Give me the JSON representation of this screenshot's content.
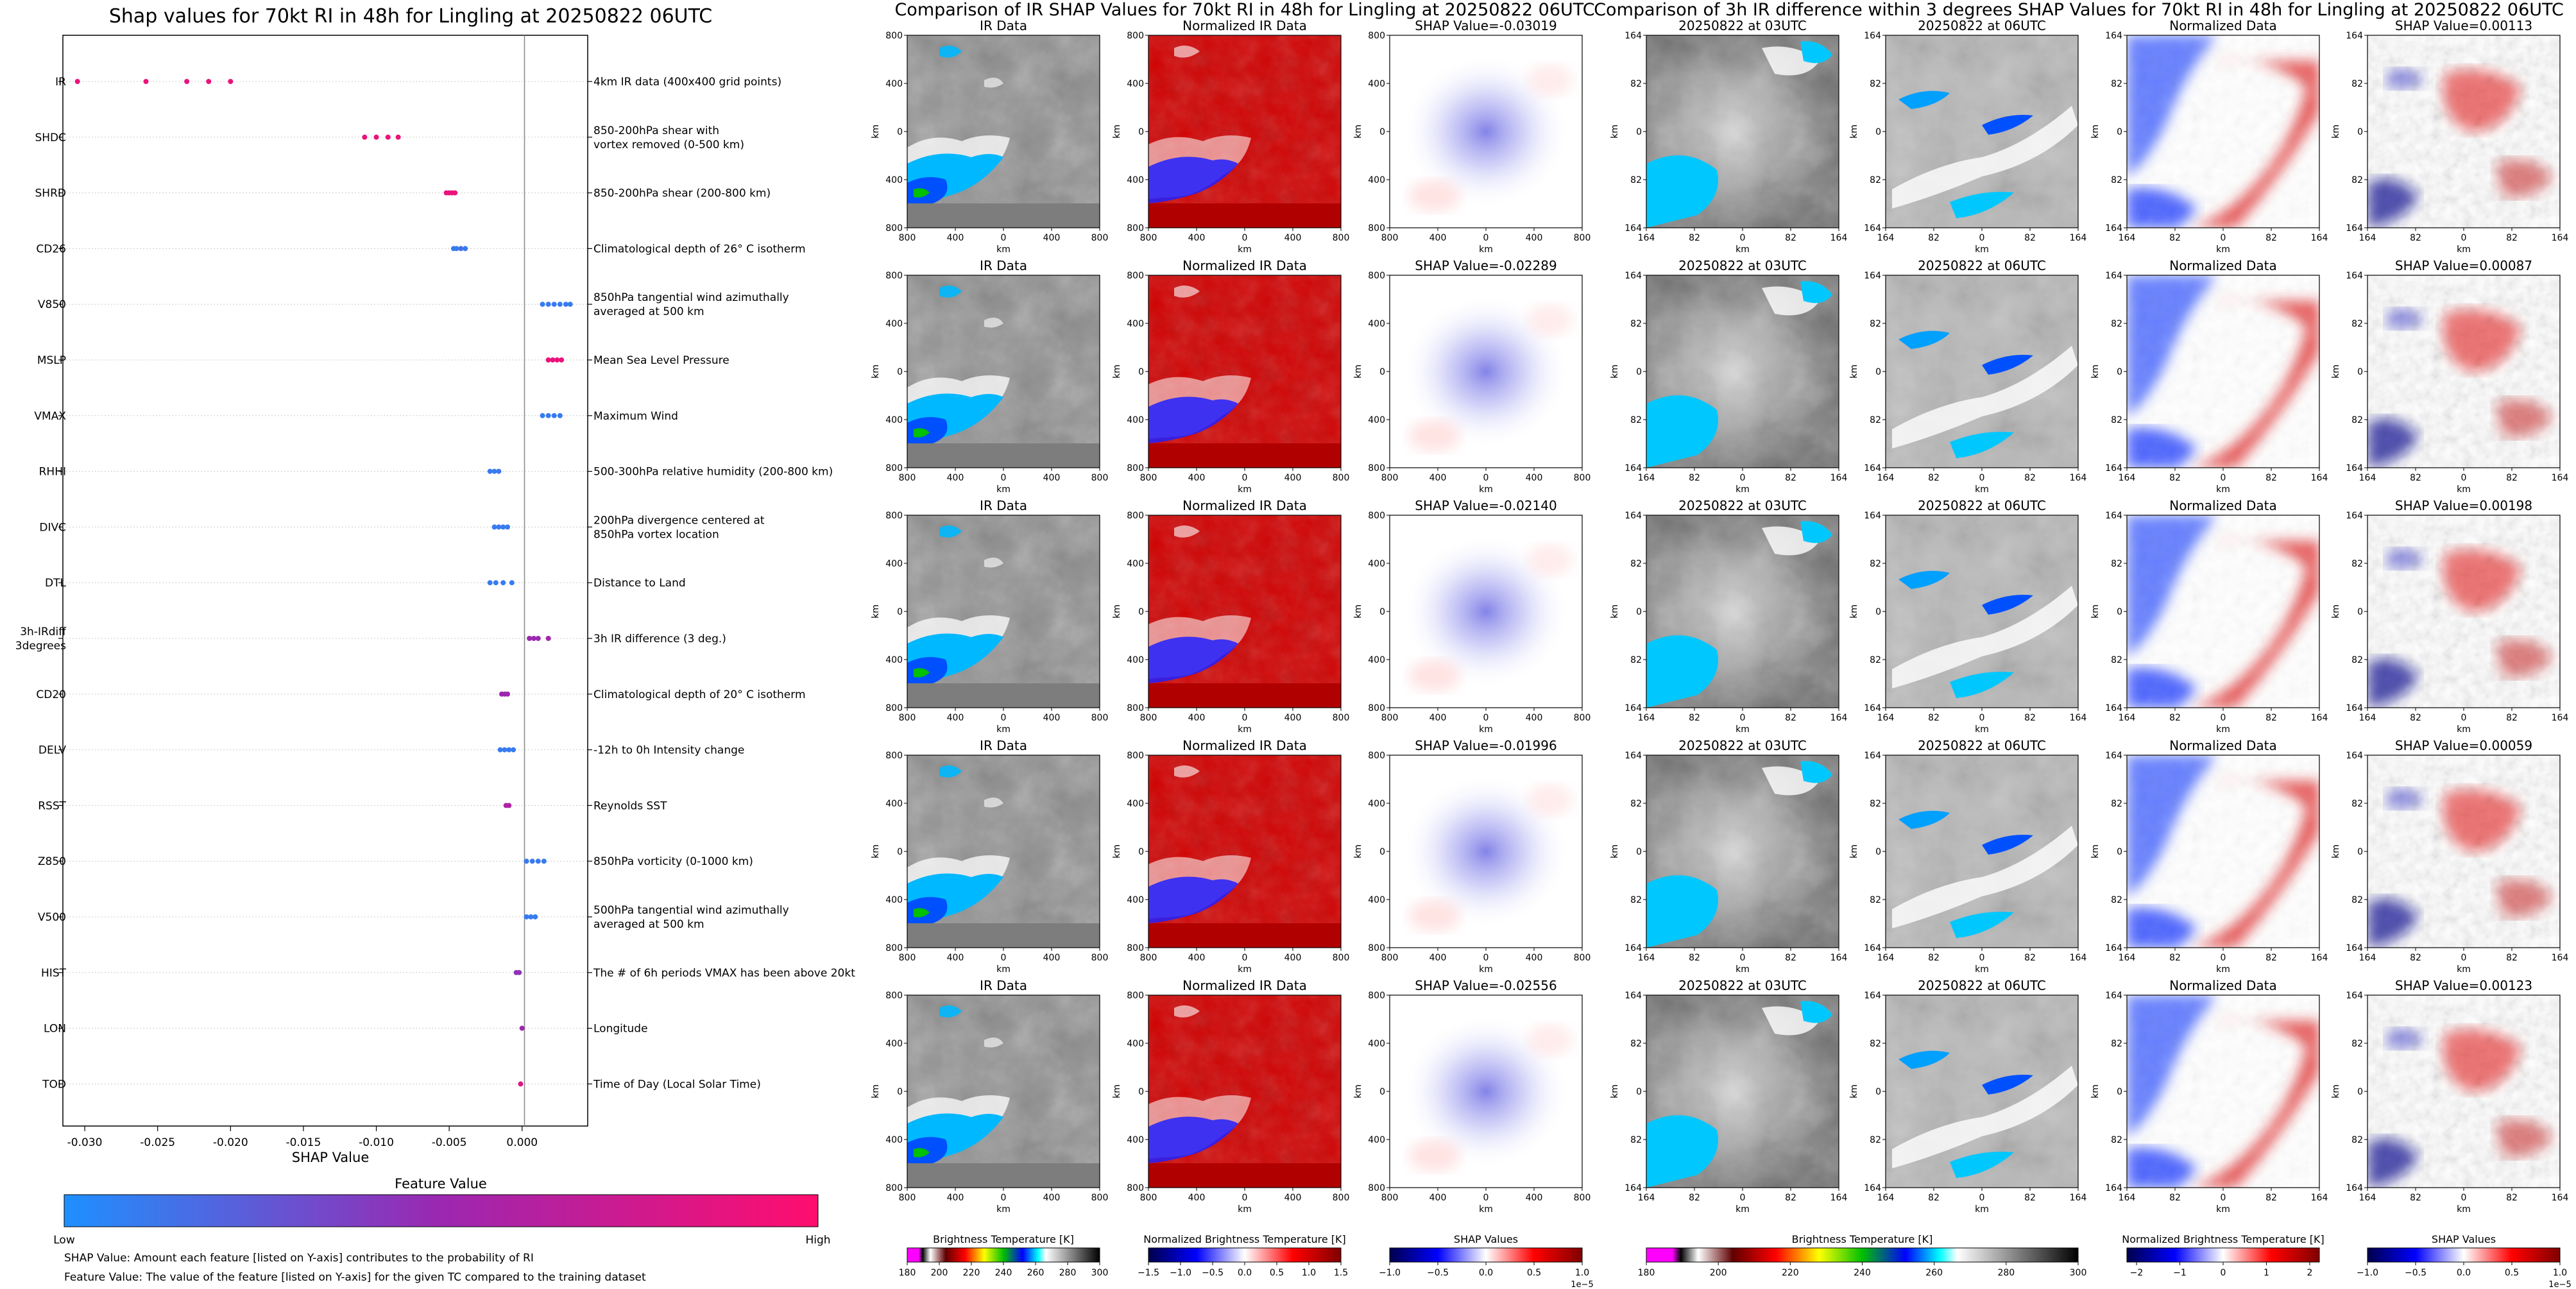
{
  "colors": {
    "feature_low": "#1e90ff",
    "feature_mid": "#9c27b0",
    "feature_high": "#ff0d6e",
    "shap_neg": "#0000c8",
    "shap_pos": "#c80000",
    "ir_gray": "#8a8a8a",
    "ir_cold": "#00a8ff"
  },
  "shap_panel": {
    "title": "Shap values for 70kt RI in 48h for Lingling at 20250822 06UTC",
    "xlabel": "SHAP Value",
    "colorbar_title": "Feature Value",
    "colorbar_low": "Low",
    "colorbar_high": "High",
    "footnote_1": "SHAP Value: Amount each feature [listed on Y-axis] contributes to the probability of RI",
    "footnote_2": "Feature Value: The value of the feature [listed on Y-axis] for the given TC compared to the training dataset"
  },
  "chart_data": [
    {
      "type": "scatter",
      "title": "Shap values for 70kt RI in 48h for Lingling at 20250822 06UTC",
      "xlabel": "SHAP Value",
      "xlim": [
        -0.0315,
        0.0045
      ],
      "xticks": [
        "-0.030",
        "-0.025",
        "-0.020",
        "-0.015",
        "-0.010",
        "-0.005",
        "0.000"
      ],
      "xtick_values": [
        -0.03,
        -0.025,
        -0.02,
        -0.015,
        -0.01,
        -0.005,
        0.0
      ],
      "features": [
        {
          "name": "IR",
          "desc": [
            "4km IR data (400x400 grid points)"
          ],
          "points": [
            [
              -0.0305,
              0.9
            ],
            [
              -0.0258,
              0.9
            ],
            [
              -0.023,
              0.9
            ],
            [
              -0.0215,
              0.9
            ],
            [
              -0.02,
              0.9
            ]
          ]
        },
        {
          "name": "SHDC",
          "desc": [
            "850-200hPa shear with",
            "vortex removed (0-500 km)"
          ],
          "points": [
            [
              -0.0108,
              0.9
            ],
            [
              -0.01,
              0.9
            ],
            [
              -0.0092,
              0.9
            ],
            [
              -0.0085,
              0.9
            ]
          ]
        },
        {
          "name": "SHRD",
          "desc": [
            "850-200hPa shear (200-800 km)"
          ],
          "points": [
            [
              -0.0052,
              0.9
            ],
            [
              -0.005,
              0.9
            ],
            [
              -0.0048,
              0.9
            ],
            [
              -0.0046,
              0.9
            ]
          ]
        },
        {
          "name": "CD26",
          "desc": [
            "Climatological depth of 26° C isotherm"
          ],
          "points": [
            [
              -0.0047,
              0.1
            ],
            [
              -0.0045,
              0.1
            ],
            [
              -0.0042,
              0.15
            ],
            [
              -0.0039,
              0.1
            ]
          ]
        },
        {
          "name": "V850",
          "desc": [
            "850hPa tangential wind azimuthally",
            "averaged at 500 km"
          ],
          "points": [
            [
              0.0014,
              0.1
            ],
            [
              0.0018,
              0.1
            ],
            [
              0.0022,
              0.1
            ],
            [
              0.0026,
              0.1
            ],
            [
              0.003,
              0.1
            ],
            [
              0.0033,
              0.1
            ]
          ]
        },
        {
          "name": "MSLP",
          "desc": [
            "Mean Sea Level Pressure"
          ],
          "points": [
            [
              0.0018,
              0.9
            ],
            [
              0.0021,
              0.9
            ],
            [
              0.0024,
              0.9
            ],
            [
              0.0027,
              0.9
            ]
          ]
        },
        {
          "name": "VMAX",
          "desc": [
            "Maximum Wind"
          ],
          "points": [
            [
              0.0014,
              0.1
            ],
            [
              0.0018,
              0.1
            ],
            [
              0.0022,
              0.1
            ],
            [
              0.0026,
              0.1
            ]
          ]
        },
        {
          "name": "RHHI",
          "desc": [
            "500-300hPa relative humidity (200-800 km)"
          ],
          "points": [
            [
              -0.0022,
              0.1
            ],
            [
              -0.0019,
              0.1
            ],
            [
              -0.0016,
              0.1
            ]
          ]
        },
        {
          "name": "DIVC",
          "desc": [
            "200hPa divergence centered at",
            "850hPa vortex location"
          ],
          "points": [
            [
              -0.0019,
              0.1
            ],
            [
              -0.0016,
              0.1
            ],
            [
              -0.0013,
              0.1
            ],
            [
              -0.001,
              0.1
            ]
          ]
        },
        {
          "name": "DTL",
          "desc": [
            "Distance to Land"
          ],
          "points": [
            [
              -0.0022,
              0.1
            ],
            [
              -0.0018,
              0.1
            ],
            [
              -0.0013,
              0.1
            ],
            [
              -0.0007,
              0.1
            ]
          ]
        },
        {
          "name": "3h-IRdiff\n3degrees",
          "desc": [
            "3h IR difference (3 deg.)"
          ],
          "points": [
            [
              0.0005,
              0.5
            ],
            [
              0.0008,
              0.5
            ],
            [
              0.0011,
              0.5
            ],
            [
              0.0018,
              0.55
            ]
          ]
        },
        {
          "name": "CD20",
          "desc": [
            "Climatological depth of 20° C isotherm"
          ],
          "points": [
            [
              -0.0014,
              0.5
            ],
            [
              -0.0012,
              0.5
            ],
            [
              -0.001,
              0.5
            ]
          ]
        },
        {
          "name": "DELV",
          "desc": [
            "-12h to 0h Intensity change"
          ],
          "points": [
            [
              -0.0015,
              0.1
            ],
            [
              -0.0012,
              0.1
            ],
            [
              -0.0009,
              0.1
            ],
            [
              -0.0006,
              0.1
            ]
          ]
        },
        {
          "name": "RSST",
          "desc": [
            "Reynolds SST"
          ],
          "points": [
            [
              -0.0011,
              0.6
            ],
            [
              -0.0009,
              0.6
            ]
          ]
        },
        {
          "name": "Z850",
          "desc": [
            "850hPa vorticity (0-1000 km)"
          ],
          "points": [
            [
              0.0003,
              0.1
            ],
            [
              0.0007,
              0.1
            ],
            [
              0.0011,
              0.1
            ],
            [
              0.0015,
              0.1
            ]
          ]
        },
        {
          "name": "V500",
          "desc": [
            "500hPa tangential wind azimuthally",
            "averaged at 500 km"
          ],
          "points": [
            [
              0.0003,
              0.1
            ],
            [
              0.0006,
              0.1
            ],
            [
              0.0009,
              0.1
            ]
          ]
        },
        {
          "name": "HIST",
          "desc": [
            "The # of 6h periods VMAX has been above 20kt"
          ],
          "points": [
            [
              -0.0004,
              0.45
            ],
            [
              -0.0002,
              0.45
            ]
          ]
        },
        {
          "name": "LON",
          "desc": [
            "Longitude"
          ],
          "points": [
            [
              0.0,
              0.5
            ]
          ]
        },
        {
          "name": "TOD",
          "desc": [
            "Time of Day (Local Solar Time)"
          ],
          "points": [
            [
              -0.0001,
              0.85
            ]
          ]
        }
      ]
    },
    {
      "type": "heatmap",
      "title": "Comparison of IR SHAP Values for 70kt RI in 48h for Lingling at 20250822 06UTC",
      "column_titles": [
        "IR Data",
        "Normalized IR Data"
      ],
      "shap_titles": [
        "SHAP Value=-0.03019",
        "SHAP Value=-0.02289",
        "SHAP Value=-0.02140",
        "SHAP Value=-0.01996",
        "SHAP Value=-0.02556"
      ],
      "xticks": [
        "800",
        "400",
        "0",
        "400",
        "800"
      ],
      "yticks": [
        "800",
        "400",
        "0",
        "400",
        "800"
      ],
      "axis_label": "km",
      "colorbars": [
        {
          "label": "Brightness Temperature [K]",
          "ticks": [
            "180",
            "200",
            "220",
            "240",
            "260",
            "280",
            "300"
          ]
        },
        {
          "label": "Normalized Brightness Temperature [K]",
          "ticks": [
            "−1.5",
            "−1.0",
            "−0.5",
            "0.0",
            "0.5",
            "1.0",
            "1.5"
          ]
        },
        {
          "label": "SHAP Values",
          "ticks": [
            "−1.0",
            "−0.5",
            "0.0",
            "0.5",
            "1.0"
          ],
          "scale_note": "1e−5"
        }
      ]
    },
    {
      "type": "heatmap",
      "title": "Comparison of 3h IR difference within 3 degrees SHAP Values for 70kt RI in 48h for Lingling at 20250822 06UTC",
      "column_titles": [
        "20250822 at 03UTC",
        "20250822 at 06UTC",
        "Normalized Data"
      ],
      "shap_titles": [
        "SHAP Value=0.00113",
        "SHAP Value=0.00087",
        "SHAP Value=0.00198",
        "SHAP Value=0.00059",
        "SHAP Value=0.00123"
      ],
      "xticks": [
        "164",
        "82",
        "0",
        "82",
        "164"
      ],
      "yticks": [
        "164",
        "82",
        "0",
        "82",
        "164"
      ],
      "axis_label": "km",
      "colorbars": [
        {
          "label": "Brightness Temperature [K]",
          "ticks": [
            "180",
            "200",
            "220",
            "240",
            "260",
            "280",
            "300"
          ]
        },
        {
          "label": "Normalized Brightness Temperature [K]",
          "ticks": [
            "−2",
            "−1",
            "0",
            "1",
            "2"
          ]
        },
        {
          "label": "SHAP Values",
          "ticks": [
            "−1.0",
            "−0.5",
            "0.0",
            "0.5",
            "1.0"
          ],
          "scale_note": "1e−5"
        }
      ]
    }
  ]
}
